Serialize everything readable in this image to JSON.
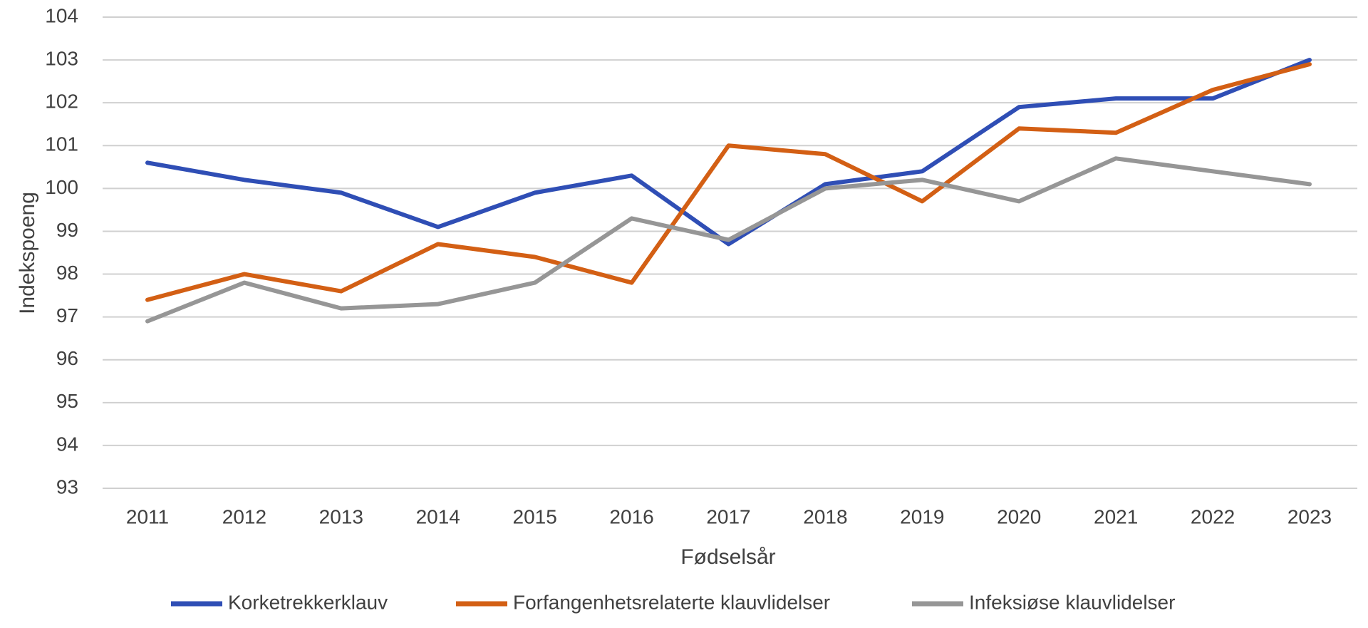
{
  "chart_data": {
    "type": "line",
    "title": "",
    "xlabel": "Fødselsår",
    "ylabel": "Indekspoeng",
    "ylim": [
      93,
      104
    ],
    "yticks": [
      93,
      94,
      95,
      96,
      97,
      98,
      99,
      100,
      101,
      102,
      103,
      104
    ],
    "grid": "horizontal",
    "legend_position": "bottom",
    "categories": [
      "2011",
      "2012",
      "2013",
      "2014",
      "2015",
      "2016",
      "2017",
      "2018",
      "2019",
      "2020",
      "2021",
      "2022",
      "2023"
    ],
    "series": [
      {
        "name": "Korketrekkerklauv",
        "color": "#2F4EB5",
        "values": [
          100.6,
          100.2,
          99.9,
          99.1,
          99.9,
          100.3,
          98.7,
          100.1,
          100.4,
          101.9,
          102.1,
          102.1,
          103.0
        ]
      },
      {
        "name": "Forfangenhetsrelaterte klauvlidelser",
        "color": "#D35F14",
        "values": [
          97.4,
          98.0,
          97.6,
          98.7,
          98.4,
          97.8,
          101.0,
          100.8,
          99.7,
          101.4,
          101.3,
          102.3,
          102.9
        ]
      },
      {
        "name": "Infeksiøse klauvlidelser",
        "color": "#969696",
        "values": [
          96.9,
          97.8,
          97.2,
          97.3,
          97.8,
          99.3,
          98.8,
          100.0,
          100.2,
          99.7,
          100.7,
          100.4,
          100.1
        ]
      }
    ]
  }
}
